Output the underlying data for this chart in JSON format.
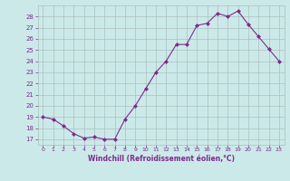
{
  "x": [
    0,
    1,
    2,
    3,
    4,
    5,
    6,
    7,
    8,
    9,
    10,
    11,
    12,
    13,
    14,
    15,
    16,
    17,
    18,
    19,
    20,
    21,
    22,
    23
  ],
  "y": [
    19,
    18.8,
    18.2,
    17.5,
    17.1,
    17.2,
    17.0,
    17.0,
    18.8,
    20.0,
    21.5,
    23.0,
    24.0,
    25.5,
    25.5,
    27.2,
    27.4,
    28.3,
    28.0,
    28.5,
    27.3,
    26.2,
    25.1,
    24.0
  ],
  "line_color": "#7b2d8b",
  "marker": "D",
  "marker_size": 2.0,
  "xlabel": "Windchill (Refroidissement éolien,°C)",
  "xlim": [
    -0.5,
    23.5
  ],
  "ylim": [
    16.5,
    29.0
  ],
  "yticks": [
    17,
    18,
    19,
    20,
    21,
    22,
    23,
    24,
    25,
    26,
    27,
    28
  ],
  "xticks": [
    0,
    1,
    2,
    3,
    4,
    5,
    6,
    7,
    8,
    9,
    10,
    11,
    12,
    13,
    14,
    15,
    16,
    17,
    18,
    19,
    20,
    21,
    22,
    23
  ],
  "background_color": "#cce9e9",
  "grid_color": "#aabfbf",
  "purple": "#7b2d8b"
}
